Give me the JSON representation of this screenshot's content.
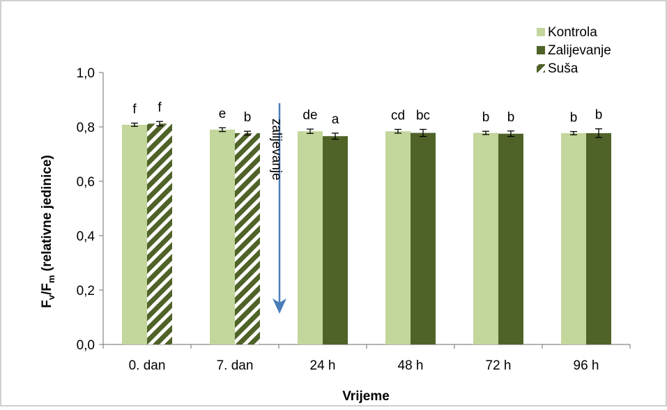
{
  "chart_data": {
    "type": "bar",
    "title": "",
    "xlabel": "Vrijeme",
    "ylabel": {
      "base": "F",
      "sub1": "v",
      "mid": "/F",
      "sub2": "m",
      "rest": " (relativne jedinice)"
    },
    "ylim": [
      0,
      1.0
    ],
    "yticks": [
      0.0,
      0.2,
      0.4,
      0.6,
      0.8,
      1.0
    ],
    "ytick_labels": [
      "0,0",
      "0,2",
      "0,4",
      "0,6",
      "0,8",
      "1,0"
    ],
    "categories": [
      "0. dan",
      "7. dan",
      "24 h",
      "48 h",
      "72 h",
      "96 h"
    ],
    "grid": false,
    "legend_position": "top-right",
    "legend": [
      {
        "name": "Kontrola",
        "color": "#c3d69b",
        "pattern": "solid"
      },
      {
        "name": "Zalijevanje",
        "color": "#4f6228",
        "pattern": "solid"
      },
      {
        "name": "Suša",
        "color": "#4f6228",
        "pattern": "hatch"
      }
    ],
    "series": [
      {
        "name": "Kontrola",
        "color": "#c3d69b",
        "values": [
          0.808,
          0.79,
          0.784,
          0.784,
          0.778,
          0.777
        ],
        "errors": [
          0.006,
          0.007,
          0.008,
          0.007,
          0.006,
          0.006
        ],
        "labels": [
          "f",
          "e",
          "de",
          "cd",
          "b",
          "b"
        ]
      },
      {
        "name": "Zalijevanje / Suša",
        "color": "#4f6228",
        "values": [
          0.812,
          0.777,
          0.766,
          0.778,
          0.775,
          0.777
        ],
        "errors": [
          0.008,
          0.007,
          0.011,
          0.013,
          0.01,
          0.016
        ],
        "labels": [
          "f",
          "b",
          "a",
          "bc",
          "b",
          "b"
        ],
        "patterns": [
          "hatch",
          "hatch",
          "solid",
          "solid",
          "solid",
          "solid"
        ]
      }
    ],
    "annotation": {
      "text": "zalijevanje",
      "arrow_color": "#4a7ebb"
    }
  }
}
